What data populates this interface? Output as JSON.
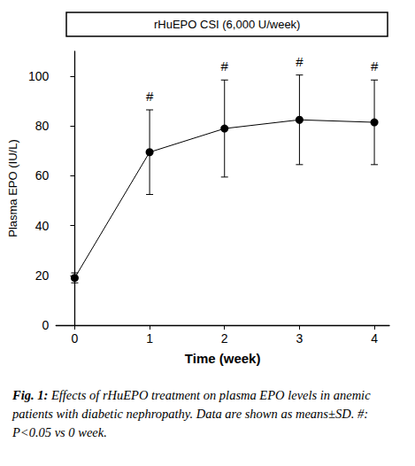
{
  "chart_data": {
    "type": "line",
    "title": "rHuEPO CSI (6,000 U/week)",
    "x_label": "Time (week)",
    "y_label": "Plasma EPO (IU/L)",
    "x": [
      0,
      1,
      2,
      3,
      4
    ],
    "values": [
      19,
      69.5,
      79,
      82.5,
      81.5
    ],
    "sd": [
      2,
      17,
      19.5,
      18,
      17
    ],
    "significance": [
      null,
      "#",
      "#",
      "#",
      "#"
    ],
    "color": "#000000",
    "marker": "circle",
    "xlim": [
      -0.25,
      4.2
    ],
    "xticks": [
      0,
      1,
      2,
      3,
      4
    ],
    "ylim": [
      0,
      110
    ],
    "yticks": [
      0,
      20,
      40,
      60,
      80,
      100
    ],
    "grid": false,
    "caption_label": "Fig. 1:",
    "caption": "Effects of rHuEPO treatment on plasma EPO levels in anemic patients with diabetic nephropathy. Data are shown as means±SD.   #:   P<0.05 vs 0 week."
  }
}
